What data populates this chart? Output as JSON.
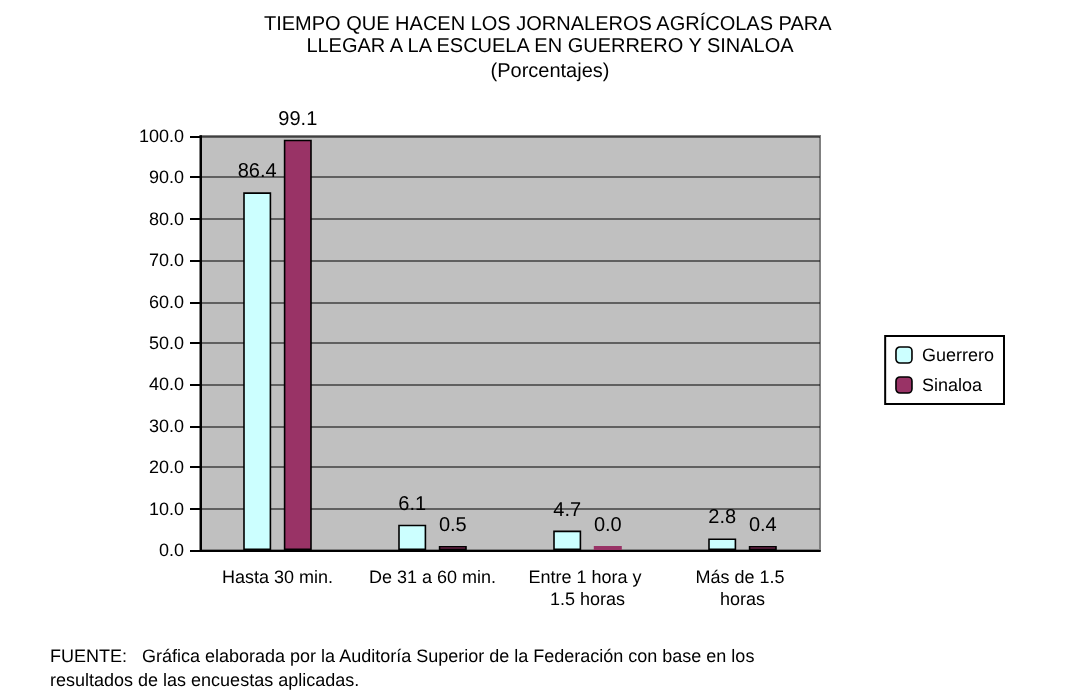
{
  "chart_data": {
    "type": "bar",
    "title": "TIEMPO QUE HACEN LOS JORNALEROS AGRÍCOLAS PARA LLEGAR A LA ESCUELA EN GUERRERO Y SINALOA",
    "subtitle": "(Porcentajes)",
    "categories": [
      "Hasta 30 min.",
      "De 31 a 60 min.",
      "Entre 1 hora y 1.5 horas",
      "Más de 1.5 horas"
    ],
    "series": [
      {
        "name": "Guerrero",
        "color": "#ccffff",
        "values": [
          86.4,
          6.1,
          4.7,
          2.8
        ],
        "value_labels": [
          "86.4",
          "6.1",
          "4.7",
          "2.8"
        ]
      },
      {
        "name": "Sinaloa",
        "color": "#993366",
        "values": [
          99.1,
          0.5,
          0.0,
          0.4
        ],
        "value_labels": [
          "99.1",
          "0.5",
          "0.0",
          "0.4"
        ]
      }
    ],
    "ylim": [
      0,
      100
    ],
    "yticks": [
      {
        "value": 0,
        "label": "0.0"
      },
      {
        "value": 10,
        "label": "10.0"
      },
      {
        "value": 20,
        "label": "20.0"
      },
      {
        "value": 30,
        "label": "30.0"
      },
      {
        "value": 40,
        "label": "40.0"
      },
      {
        "value": 50,
        "label": "50.0"
      },
      {
        "value": 60,
        "label": "60.0"
      },
      {
        "value": 70,
        "label": "70.0"
      },
      {
        "value": 80,
        "label": "80.0"
      },
      {
        "value": 90,
        "label": "90.0"
      },
      {
        "value": 100,
        "label": "100.0"
      }
    ],
    "grid": "y",
    "legend": "right",
    "annotations": [
      "FUENTE:   Gráfica elaborada por la Auditoría Superior de la Federación con base en los resultados de las encuestas aplicadas."
    ]
  }
}
